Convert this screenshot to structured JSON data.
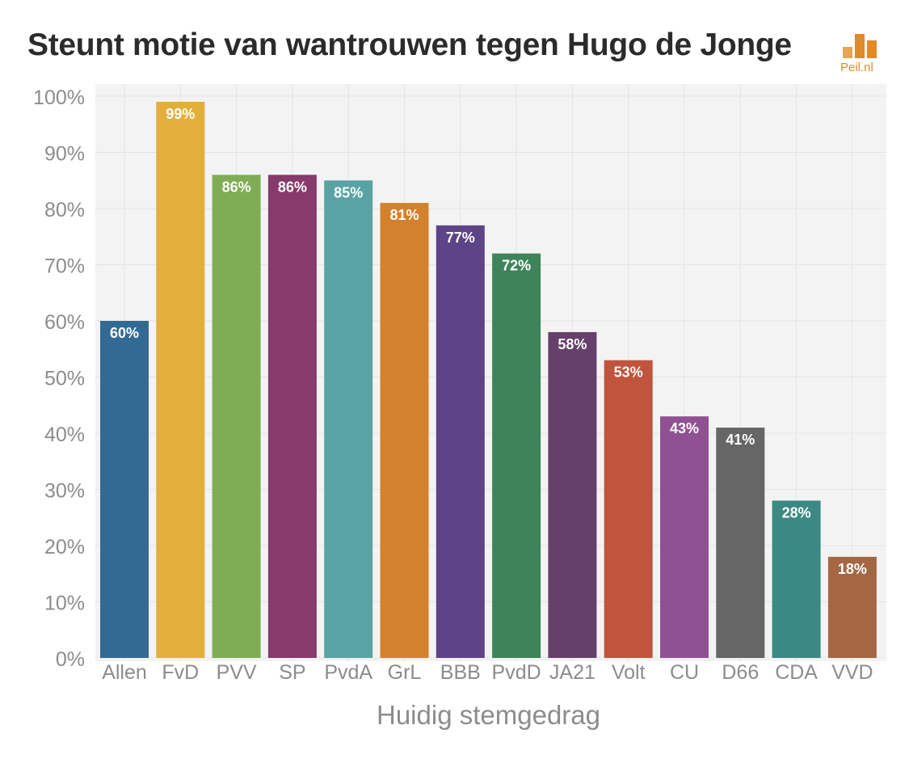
{
  "title": "Steunt motie van wantrouwen tegen Hugo de Jonge",
  "logo": {
    "text": "Peil.nl",
    "icon": "bar-logo-icon",
    "color": "#e08a2a"
  },
  "chart_data": {
    "type": "bar",
    "categories": [
      "Allen",
      "FvD",
      "PVV",
      "SP",
      "PvdA",
      "GrL",
      "BBB",
      "PvdD",
      "JA21",
      "Volt",
      "CU",
      "D66",
      "CDA",
      "VVD"
    ],
    "values": [
      60,
      99,
      86,
      86,
      85,
      81,
      77,
      72,
      58,
      53,
      43,
      41,
      28,
      18
    ],
    "labels": [
      "60%",
      "99%",
      "86%",
      "86%",
      "85%",
      "81%",
      "77%",
      "72%",
      "58%",
      "53%",
      "43%",
      "41%",
      "28%",
      "18%"
    ],
    "colors": [
      "#336a94",
      "#e4ae3c",
      "#7fad55",
      "#873a6c",
      "#5aa3a5",
      "#d4812e",
      "#5d4388",
      "#3d845a",
      "#65406a",
      "#c0543d",
      "#905193",
      "#666666",
      "#3a8982",
      "#a56743"
    ],
    "title": "Steunt motie van wantrouwen tegen Hugo de Jonge",
    "xlabel": "Huidig stemgedrag",
    "ylabel": "",
    "ylim": [
      0,
      100
    ],
    "yticks": [
      "0%",
      "10%",
      "20%",
      "30%",
      "40%",
      "50%",
      "60%",
      "70%",
      "80%",
      "90%",
      "100%"
    ],
    "grid": true,
    "legend": "none"
  }
}
